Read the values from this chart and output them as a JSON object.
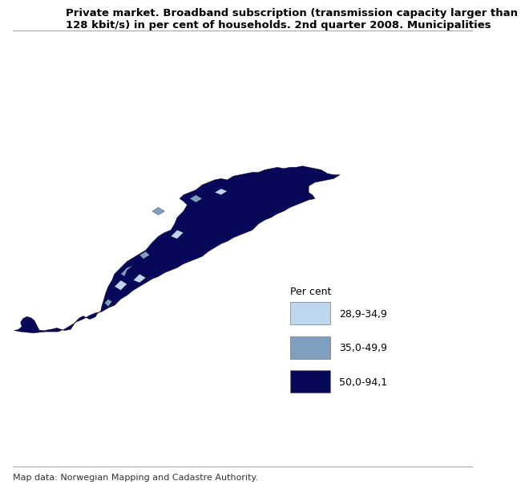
{
  "title": "Private market. Broadband subscription (transmission capacity larger than\n128 kbit/s) in per cent of households. 2nd quarter 2008. Municipalities",
  "footer": "Map data: Norwegian Mapping and Cadastre Authority.",
  "legend_title": "Per cent",
  "legend_items": [
    {
      "label": "28,9-34,9",
      "color": "#bdd7ee"
    },
    {
      "label": "35,0-49,9",
      "color": "#7f9fc0"
    },
    {
      "label": "50,0-94,1",
      "color": "#08085a"
    }
  ],
  "background_color": "#ffffff",
  "title_fontsize": 9.5,
  "footer_fontsize": 8,
  "legend_fontsize": 9
}
